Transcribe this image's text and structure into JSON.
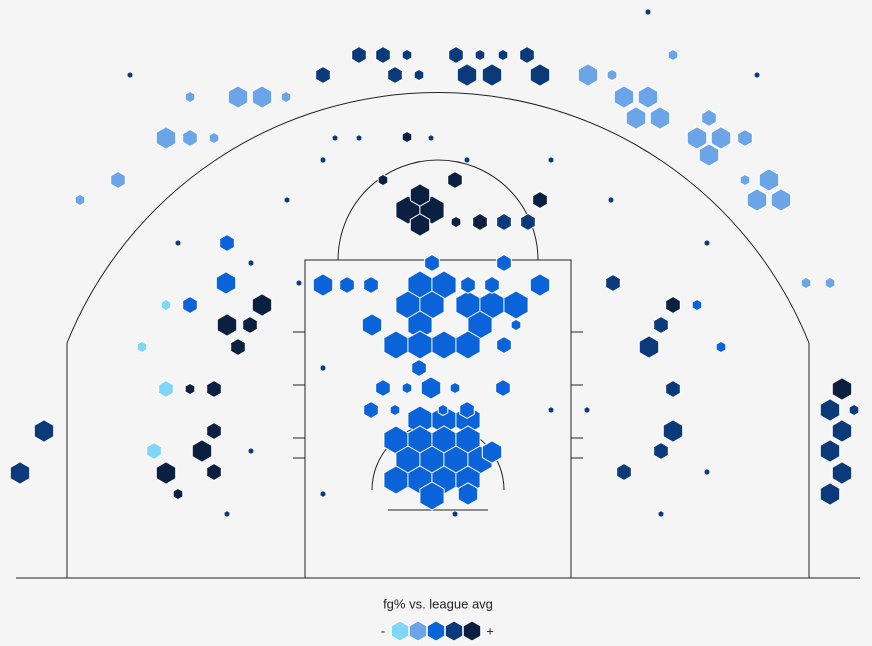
{
  "chart_data": {
    "type": "hexbin",
    "legend_title": "fg% vs. league avg",
    "legend_low": "-",
    "legend_high": "+",
    "colors": [
      "#7fd6f7",
      "#6ba5e7",
      "#0a63d8",
      "#0b3a7a",
      "#0b1f40"
    ],
    "xlim": [
      -422,
      422
    ],
    "ylim": [
      0,
      578
    ],
    "hexes": [
      {
        "x": -18,
        "y": 158,
        "size": 5,
        "level": 2
      },
      {
        "x": 6,
        "y": 158,
        "size": 5,
        "level": 2
      },
      {
        "x": 30,
        "y": 158,
        "size": 5,
        "level": 2
      },
      {
        "x": -42,
        "y": 138,
        "size": 5,
        "level": 2
      },
      {
        "x": -18,
        "y": 138,
        "size": 5,
        "level": 2
      },
      {
        "x": 6,
        "y": 138,
        "size": 5,
        "level": 2
      },
      {
        "x": 30,
        "y": 138,
        "size": 5,
        "level": 2
      },
      {
        "x": -30,
        "y": 118,
        "size": 5,
        "level": 2
      },
      {
        "x": -6,
        "y": 118,
        "size": 5,
        "level": 2
      },
      {
        "x": 18,
        "y": 118,
        "size": 5,
        "level": 2
      },
      {
        "x": 42,
        "y": 118,
        "size": 5,
        "level": 2
      },
      {
        "x": -42,
        "y": 98,
        "size": 5,
        "level": 2
      },
      {
        "x": -18,
        "y": 98,
        "size": 5,
        "level": 2
      },
      {
        "x": 6,
        "y": 98,
        "size": 5,
        "level": 2
      },
      {
        "x": 30,
        "y": 98,
        "size": 5,
        "level": 2
      },
      {
        "x": -6,
        "y": 82,
        "size": 5,
        "level": 2
      },
      {
        "x": 54,
        "y": 126,
        "size": 4,
        "level": 2
      },
      {
        "x": 30,
        "y": 84,
        "size": 4,
        "level": 2
      },
      {
        "x": -55,
        "y": 190,
        "size": 3,
        "level": 2
      },
      {
        "x": -7,
        "y": 190,
        "size": 4,
        "level": 2
      },
      {
        "x": -67,
        "y": 168,
        "size": 3,
        "level": 2
      },
      {
        "x": 29,
        "y": 168,
        "size": 3,
        "level": 2
      },
      {
        "x": -19,
        "y": 210,
        "size": 3,
        "level": 2
      },
      {
        "x": -31,
        "y": 190,
        "size": 2,
        "level": 2
      },
      {
        "x": 17,
        "y": 190,
        "size": 2,
        "level": 2
      },
      {
        "x": 65,
        "y": 190,
        "size": 3,
        "level": 2
      },
      {
        "x": 5,
        "y": 168,
        "size": 2,
        "level": 2
      },
      {
        "x": -43,
        "y": 168,
        "size": 2,
        "level": 2
      },
      {
        "x": -18,
        "y": 293,
        "size": 5,
        "level": 2
      },
      {
        "x": 6,
        "y": 293,
        "size": 5,
        "level": 2
      },
      {
        "x": -30,
        "y": 273,
        "size": 5,
        "level": 2
      },
      {
        "x": -6,
        "y": 273,
        "size": 5,
        "level": 2
      },
      {
        "x": 30,
        "y": 273,
        "size": 5,
        "level": 2
      },
      {
        "x": 54,
        "y": 273,
        "size": 5,
        "level": 2
      },
      {
        "x": 78,
        "y": 273,
        "size": 5,
        "level": 2
      },
      {
        "x": -18,
        "y": 253,
        "size": 5,
        "level": 2
      },
      {
        "x": 42,
        "y": 253,
        "size": 5,
        "level": 2
      },
      {
        "x": -42,
        "y": 233,
        "size": 5,
        "level": 2
      },
      {
        "x": -18,
        "y": 233,
        "size": 5,
        "level": 2
      },
      {
        "x": 6,
        "y": 233,
        "size": 5,
        "level": 2
      },
      {
        "x": 30,
        "y": 233,
        "size": 5,
        "level": 2
      },
      {
        "x": 102,
        "y": 293,
        "size": 4,
        "level": 2
      },
      {
        "x": 66,
        "y": 233,
        "size": 3,
        "level": 2
      },
      {
        "x": -66,
        "y": 253,
        "size": 4,
        "level": 2
      },
      {
        "x": -115,
        "y": 293,
        "size": 4,
        "level": 2
      },
      {
        "x": -91,
        "y": 293,
        "size": 3,
        "level": 2
      },
      {
        "x": -67,
        "y": 293,
        "size": 3,
        "level": 2
      },
      {
        "x": -6,
        "y": 315,
        "size": 3,
        "level": 2
      },
      {
        "x": 66,
        "y": 315,
        "size": 3,
        "level": 2
      },
      {
        "x": 30,
        "y": 293,
        "size": 3,
        "level": 2
      },
      {
        "x": 54,
        "y": 293,
        "size": 3,
        "level": 2
      },
      {
        "x": 78,
        "y": 253,
        "size": 2,
        "level": 2
      },
      {
        "x": -30,
        "y": 368,
        "size": 5,
        "level": 4
      },
      {
        "x": -6,
        "y": 368,
        "size": 5,
        "level": 4
      },
      {
        "x": -18,
        "y": 383,
        "size": 4,
        "level": 4
      },
      {
        "x": -18,
        "y": 353,
        "size": 4,
        "level": 4
      },
      {
        "x": 17,
        "y": 398,
        "size": 3,
        "level": 4
      },
      {
        "x": 42,
        "y": 356,
        "size": 3,
        "level": 4
      },
      {
        "x": 66,
        "y": 356,
        "size": 3,
        "level": 3
      },
      {
        "x": 90,
        "y": 356,
        "size": 3,
        "level": 3
      },
      {
        "x": 102,
        "y": 378,
        "size": 3,
        "level": 4
      },
      {
        "x": -55,
        "y": 398,
        "size": 2,
        "level": 4
      },
      {
        "x": -31,
        "y": 441,
        "size": 2,
        "level": 4
      },
      {
        "x": 18,
        "y": 356,
        "size": 2,
        "level": 4
      },
      {
        "x": -211,
        "y": 253,
        "size": 4,
        "level": 4
      },
      {
        "x": -188,
        "y": 253,
        "size": 3,
        "level": 4
      },
      {
        "x": -176,
        "y": 273,
        "size": 4,
        "level": 4
      },
      {
        "x": -200,
        "y": 231,
        "size": 3,
        "level": 4
      },
      {
        "x": -212,
        "y": 295,
        "size": 4,
        "level": 2
      },
      {
        "x": -211,
        "y": 335,
        "size": 3,
        "level": 2
      },
      {
        "x": -248,
        "y": 273,
        "size": 3,
        "level": 2
      },
      {
        "x": -272,
        "y": 273,
        "size": 2,
        "level": 0
      },
      {
        "x": -296,
        "y": 231,
        "size": 2,
        "level": 0
      },
      {
        "x": -236,
        "y": 127,
        "size": 4,
        "level": 4
      },
      {
        "x": -224,
        "y": 147,
        "size": 3,
        "level": 4
      },
      {
        "x": -272,
        "y": 105,
        "size": 4,
        "level": 4
      },
      {
        "x": -224,
        "y": 106,
        "size": 3,
        "level": 4
      },
      {
        "x": -284,
        "y": 127,
        "size": 3,
        "level": 0
      },
      {
        "x": -272,
        "y": 189,
        "size": 3,
        "level": 0
      },
      {
        "x": -248,
        "y": 189,
        "size": 2,
        "level": 4
      },
      {
        "x": -224,
        "y": 189,
        "size": 3,
        "level": 4
      },
      {
        "x": -394,
        "y": 147,
        "size": 4,
        "level": 3
      },
      {
        "x": -418,
        "y": 105,
        "size": 4,
        "level": 3
      },
      {
        "x": -260,
        "y": 84,
        "size": 2,
        "level": 4
      },
      {
        "x": 211,
        "y": 231,
        "size": 4,
        "level": 3
      },
      {
        "x": 223,
        "y": 253,
        "size": 3,
        "level": 3
      },
      {
        "x": 235,
        "y": 273,
        "size": 3,
        "level": 4
      },
      {
        "x": 175,
        "y": 295,
        "size": 3,
        "level": 3
      },
      {
        "x": 235,
        "y": 189,
        "size": 3,
        "level": 3
      },
      {
        "x": 235,
        "y": 147,
        "size": 4,
        "level": 3
      },
      {
        "x": 223,
        "y": 127,
        "size": 3,
        "level": 3
      },
      {
        "x": 186,
        "y": 106,
        "size": 3,
        "level": 3
      },
      {
        "x": 259,
        "y": 273,
        "size": 2,
        "level": 2
      },
      {
        "x": 283,
        "y": 231,
        "size": 2,
        "level": 2
      },
      {
        "x": 404,
        "y": 189,
        "size": 4,
        "level": 4
      },
      {
        "x": 392,
        "y": 168,
        "size": 4,
        "level": 3
      },
      {
        "x": 404,
        "y": 147,
        "size": 4,
        "level": 3
      },
      {
        "x": 392,
        "y": 127,
        "size": 4,
        "level": 3
      },
      {
        "x": 404,
        "y": 105,
        "size": 4,
        "level": 3
      },
      {
        "x": 392,
        "y": 84,
        "size": 4,
        "level": 3
      },
      {
        "x": 416,
        "y": 168,
        "size": 2,
        "level": 3
      },
      {
        "x": -115,
        "y": 503,
        "size": 3,
        "level": 3
      },
      {
        "x": -79,
        "y": 523,
        "size": 3,
        "level": 3
      },
      {
        "x": -55,
        "y": 523,
        "size": 3,
        "level": 3
      },
      {
        "x": -43,
        "y": 503,
        "size": 3,
        "level": 3
      },
      {
        "x": 18,
        "y": 523,
        "size": 3,
        "level": 3
      },
      {
        "x": 29,
        "y": 503,
        "size": 4,
        "level": 3
      },
      {
        "x": 54,
        "y": 503,
        "size": 4,
        "level": 3
      },
      {
        "x": 89,
        "y": 523,
        "size": 3,
        "level": 3
      },
      {
        "x": 102,
        "y": 503,
        "size": 4,
        "level": 3
      },
      {
        "x": 65,
        "y": 523,
        "size": 2,
        "level": 3
      },
      {
        "x": 42,
        "y": 523,
        "size": 2,
        "level": 3
      },
      {
        "x": -19,
        "y": 503,
        "size": 2,
        "level": 3
      },
      {
        "x": -31,
        "y": 523,
        "size": 2,
        "level": 3
      },
      {
        "x": -200,
        "y": 481,
        "size": 4,
        "level": 1
      },
      {
        "x": -176,
        "y": 481,
        "size": 4,
        "level": 1
      },
      {
        "x": -272,
        "y": 440,
        "size": 4,
        "level": 1
      },
      {
        "x": -248,
        "y": 440,
        "size": 3,
        "level": 1
      },
      {
        "x": -320,
        "y": 398,
        "size": 3,
        "level": 1
      },
      {
        "x": -358,
        "y": 378,
        "size": 2,
        "level": 1
      },
      {
        "x": -248,
        "y": 481,
        "size": 2,
        "level": 1
      },
      {
        "x": -224,
        "y": 440,
        "size": 2,
        "level": 1
      },
      {
        "x": -152,
        "y": 481,
        "size": 2,
        "level": 1
      },
      {
        "x": 150,
        "y": 503,
        "size": 4,
        "level": 1
      },
      {
        "x": 186,
        "y": 481,
        "size": 4,
        "level": 1
      },
      {
        "x": 210,
        "y": 481,
        "size": 4,
        "level": 1
      },
      {
        "x": 198,
        "y": 460,
        "size": 4,
        "level": 1
      },
      {
        "x": 222,
        "y": 460,
        "size": 4,
        "level": 1
      },
      {
        "x": 271,
        "y": 460,
        "size": 3,
        "level": 1
      },
      {
        "x": 259,
        "y": 440,
        "size": 4,
        "level": 1
      },
      {
        "x": 283,
        "y": 440,
        "size": 4,
        "level": 1
      },
      {
        "x": 271,
        "y": 423,
        "size": 4,
        "level": 1
      },
      {
        "x": 331,
        "y": 398,
        "size": 4,
        "level": 1
      },
      {
        "x": 319,
        "y": 378,
        "size": 4,
        "level": 1
      },
      {
        "x": 343,
        "y": 378,
        "size": 4,
        "level": 1
      },
      {
        "x": 307,
        "y": 440,
        "size": 3,
        "level": 1
      },
      {
        "x": 235,
        "y": 523,
        "size": 2,
        "level": 1
      },
      {
        "x": 368,
        "y": 295,
        "size": 2,
        "level": 1
      },
      {
        "x": 392,
        "y": 295,
        "size": 2,
        "level": 1
      },
      {
        "x": 174,
        "y": 503,
        "size": 2,
        "level": 1
      },
      {
        "x": 307,
        "y": 398,
        "size": 2,
        "level": 1
      },
      {
        "x": -103,
        "y": 440,
        "size": 1,
        "level": 3
      },
      {
        "x": -79,
        "y": 440,
        "size": 1,
        "level": 3
      },
      {
        "x": -7,
        "y": 440,
        "size": 1,
        "level": 3
      },
      {
        "x": -115,
        "y": 418,
        "size": 1,
        "level": 3
      },
      {
        "x": 29,
        "y": 418,
        "size": 1,
        "level": 3
      },
      {
        "x": 113,
        "y": 418,
        "size": 1,
        "level": 3
      },
      {
        "x": -151,
        "y": 378,
        "size": 1,
        "level": 3
      },
      {
        "x": 173,
        "y": 378,
        "size": 1,
        "level": 3
      },
      {
        "x": -260,
        "y": 335,
        "size": 1,
        "level": 3
      },
      {
        "x": 269,
        "y": 335,
        "size": 1,
        "level": 3
      },
      {
        "x": -187,
        "y": 315,
        "size": 1,
        "level": 3
      },
      {
        "x": -139,
        "y": 295,
        "size": 1,
        "level": 3
      },
      {
        "x": -115,
        "y": 210,
        "size": 1,
        "level": 3
      },
      {
        "x": 113,
        "y": 168,
        "size": 1,
        "level": 3
      },
      {
        "x": 149,
        "y": 168,
        "size": 1,
        "level": 3
      },
      {
        "x": -187,
        "y": 127,
        "size": 1,
        "level": 3
      },
      {
        "x": 269,
        "y": 106,
        "size": 1,
        "level": 3
      },
      {
        "x": -211,
        "y": 64,
        "size": 1,
        "level": 3
      },
      {
        "x": 223,
        "y": 64,
        "size": 1,
        "level": 3
      },
      {
        "x": -308,
        "y": 503,
        "size": 1,
        "level": 3
      },
      {
        "x": 319,
        "y": 503,
        "size": 1,
        "level": 3
      },
      {
        "x": 210,
        "y": 566,
        "size": 1,
        "level": 3
      },
      {
        "x": 17,
        "y": 64,
        "size": 1,
        "level": 3
      },
      {
        "x": -115,
        "y": 84,
        "size": 1,
        "level": 3
      }
    ]
  }
}
